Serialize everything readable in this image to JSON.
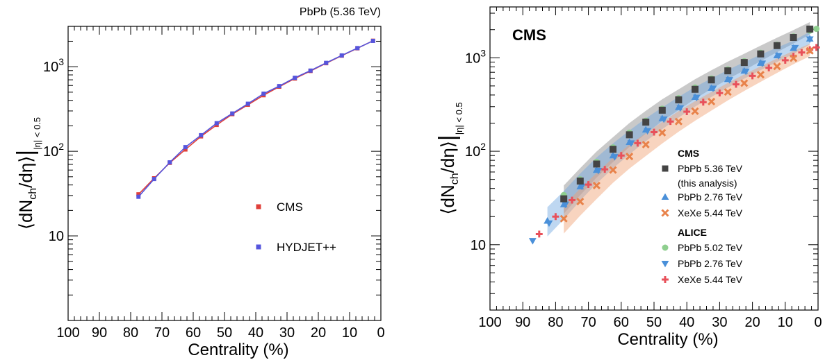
{
  "chart_data": [
    {
      "type": "line",
      "title": "",
      "header_label": "PbPb (5.36 TeV)",
      "xlabel": "Centrality (%)",
      "ylabel": "⟨dNch/dη⟩|η|<0.5",
      "xlim": [
        100,
        0
      ],
      "ylim": [
        1,
        3000
      ],
      "yscale": "log",
      "grid": false,
      "legend_position": "lower-right",
      "x_ticks": [
        100,
        90,
        80,
        70,
        60,
        50,
        40,
        30,
        20,
        10,
        0
      ],
      "y_ticks": [
        {
          "value": 10,
          "label": "10"
        },
        {
          "value": 100,
          "label": "10²"
        },
        {
          "value": 1000,
          "label": "10³"
        }
      ],
      "series": [
        {
          "name": "CMS",
          "color": "#e0403a",
          "marker": "square",
          "x": [
            77.5,
            72.5,
            67.5,
            62.5,
            57.5,
            52.5,
            47.5,
            42.5,
            37.5,
            32.5,
            27.5,
            22.5,
            17.5,
            12.5,
            7.5,
            2.5
          ],
          "values": [
            31,
            48,
            73,
            105,
            150,
            205,
            275,
            355,
            460,
            580,
            725,
            890,
            1100,
            1350,
            1650,
            2030
          ]
        },
        {
          "name": "HYDJET++",
          "color": "#5555dd",
          "marker": "square",
          "x": [
            77.5,
            72.5,
            67.5,
            62.5,
            57.5,
            52.5,
            47.5,
            42.5,
            37.5,
            32.5,
            27.5,
            22.5,
            17.5,
            12.5,
            7.5,
            2.5
          ],
          "values": [
            29,
            47,
            74,
            112,
            155,
            215,
            280,
            365,
            480,
            590,
            740,
            900,
            1110,
            1360,
            1660,
            2020
          ]
        }
      ]
    },
    {
      "type": "scatter",
      "title": "CMS",
      "xlabel": "Centrality (%)",
      "ylabel": "⟨dNch/dη⟩|η|<0.5",
      "xlim": [
        100,
        0
      ],
      "ylim": [
        2,
        3500
      ],
      "yscale": "log",
      "grid": false,
      "legend_position": "lower-right",
      "legend_groups": [
        "CMS",
        "ALICE"
      ],
      "x_ticks": [
        100,
        90,
        80,
        70,
        60,
        50,
        40,
        30,
        20,
        10,
        0
      ],
      "y_ticks": [
        {
          "value": 10,
          "label": "10"
        },
        {
          "value": 100,
          "label": "10²"
        },
        {
          "value": 1000,
          "label": "10³"
        }
      ],
      "series": [
        {
          "name": "PbPb 5.36 TeV",
          "note": "(this analysis)",
          "group": "CMS",
          "color": "#444444",
          "band_color": "#888888",
          "marker": "square",
          "x": [
            77.5,
            72.5,
            67.5,
            62.5,
            57.5,
            52.5,
            47.5,
            42.5,
            37.5,
            32.5,
            27.5,
            22.5,
            17.5,
            12.5,
            7.5,
            2.5
          ],
          "values": [
            31,
            48,
            73,
            105,
            150,
            205,
            275,
            355,
            460,
            580,
            725,
            890,
            1100,
            1350,
            1650,
            2030
          ]
        },
        {
          "name": "PbPb 2.76 TeV",
          "group": "CMS",
          "color": "#4a90d9",
          "band_color": "#6fa6e0",
          "marker": "triangle-up",
          "x": [
            82.5,
            77.5,
            72.5,
            67.5,
            62.5,
            57.5,
            52.5,
            47.5,
            42.5,
            37.5,
            32.5,
            27.5,
            22.5,
            17.5,
            12.5,
            7.5,
            2.5
          ],
          "values": [
            18,
            27,
            42,
            63,
            90,
            125,
            170,
            225,
            295,
            380,
            475,
            590,
            725,
            880,
            1060,
            1270,
            1600
          ]
        },
        {
          "name": "XeXe 5.44 TeV",
          "group": "CMS",
          "color": "#e8824a",
          "band_color": "#f0a070",
          "marker": "x",
          "x": [
            77.5,
            72.5,
            67.5,
            62.5,
            57.5,
            52.5,
            47.5,
            42.5,
            37.5,
            32.5,
            27.5,
            22.5,
            17.5,
            12.5,
            7.5,
            2.5
          ],
          "values": [
            19,
            29,
            43,
            63,
            88,
            118,
            158,
            208,
            268,
            340,
            430,
            535,
            660,
            810,
            990,
            1190
          ]
        },
        {
          "name": "PbPb 5.02 TeV",
          "group": "ALICE",
          "color": "#8fcf8f",
          "marker": "circle",
          "x": [
            77.5,
            72.5,
            67.5,
            62.5,
            57.5,
            52.5,
            47.5,
            42.5,
            37.5,
            32.5,
            27.5,
            22.5,
            17.5,
            12.5,
            7.5,
            2.5,
            0.5
          ],
          "values": [
            34,
            50,
            77,
            110,
            158,
            212,
            285,
            370,
            480,
            600,
            750,
            920,
            1130,
            1380,
            1690,
            1950,
            2040
          ]
        },
        {
          "name": "PbPb 2.76 TeV",
          "group": "ALICE",
          "color": "#4a90d9",
          "marker": "triangle-down",
          "x": [
            87,
            82,
            77,
            72,
            67,
            62,
            57,
            52,
            47,
            42,
            37,
            32,
            27,
            22,
            17,
            12,
            7,
            2.5
          ],
          "values": [
            11,
            17,
            27,
            42,
            62,
            87,
            122,
            165,
            220,
            290,
            375,
            470,
            580,
            715,
            870,
            1050,
            1280,
            1580
          ]
        },
        {
          "name": "XeXe 5.44 TeV",
          "group": "ALICE",
          "color": "#e8505a",
          "marker": "plus",
          "x": [
            85,
            80,
            75,
            70,
            65,
            60,
            55,
            50,
            45,
            40,
            35,
            30,
            25,
            20,
            15,
            10,
            7.5,
            5,
            2.5,
            0.5
          ],
          "values": [
            13,
            20,
            30,
            44,
            64,
            90,
            122,
            160,
            208,
            265,
            335,
            420,
            520,
            640,
            780,
            940,
            1040,
            1140,
            1220,
            1290
          ]
        }
      ]
    }
  ]
}
